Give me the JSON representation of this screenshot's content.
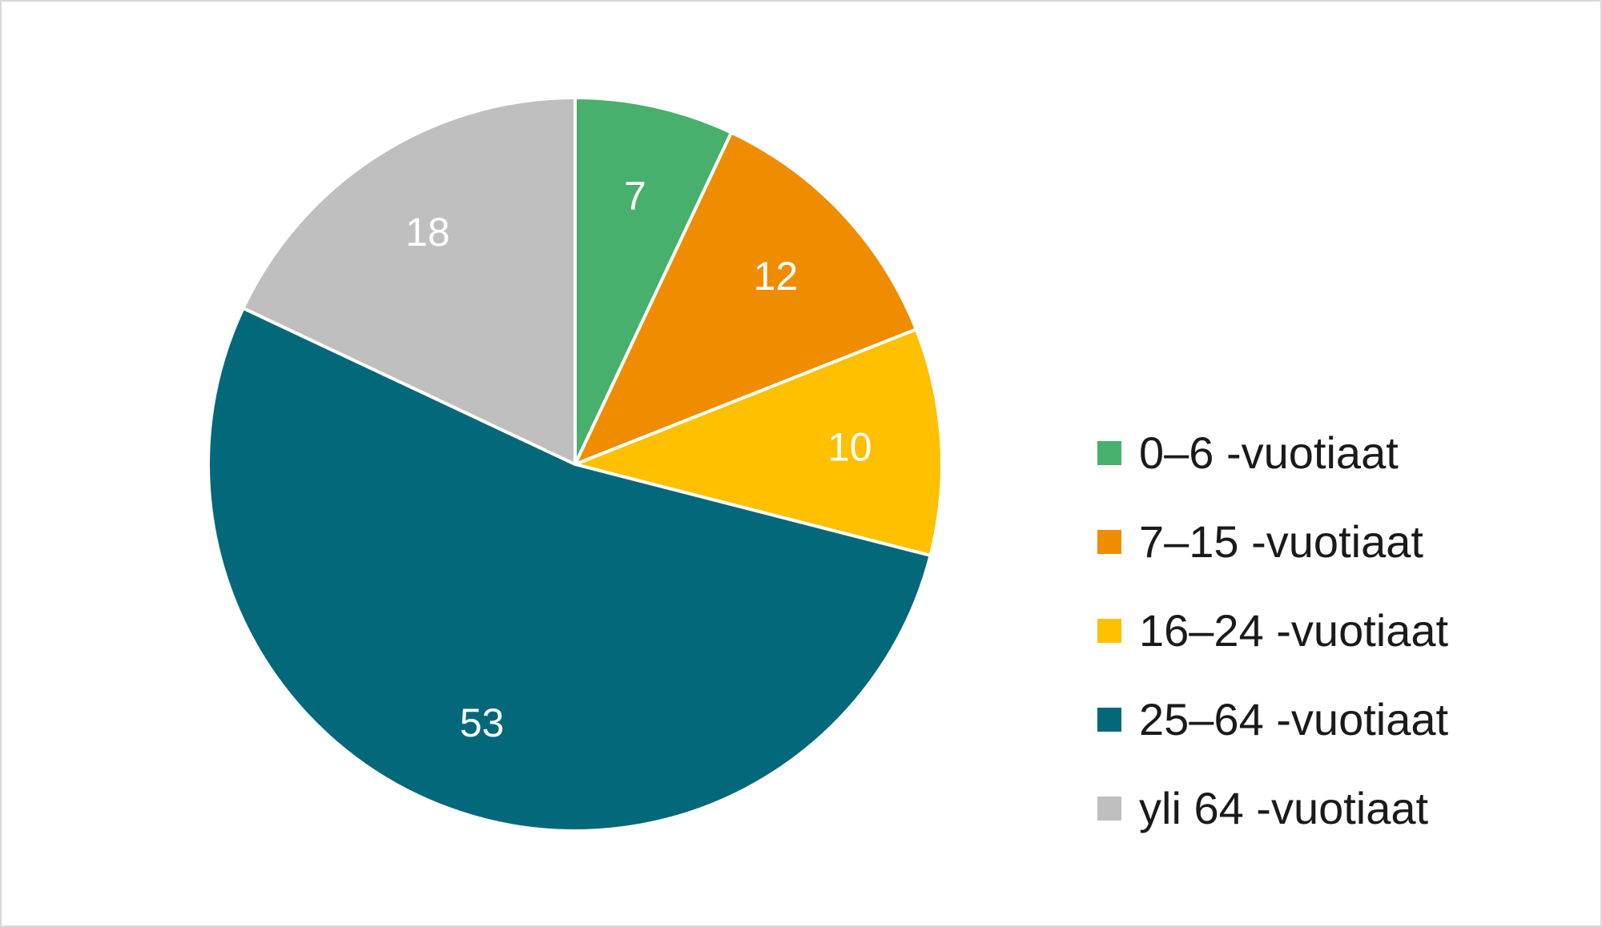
{
  "chart_data": {
    "type": "pie",
    "title": "",
    "categories": [
      "0–6 -vuotiaat",
      "7–15 -vuotiaat",
      "16–24 -vuotiaat",
      "25–64 -vuotiaat",
      "yli 64 -vuotiaat"
    ],
    "values": [
      7,
      12,
      10,
      53,
      18
    ],
    "colors": [
      "#47b06c",
      "#f08c00",
      "#ffc000",
      "#02687a",
      "#bfbfbf"
    ],
    "data_labels": [
      "7",
      "12",
      "10",
      "53",
      "18"
    ],
    "legend_position": "right",
    "start_angle": "12 o'clock",
    "direction": "clockwise"
  }
}
